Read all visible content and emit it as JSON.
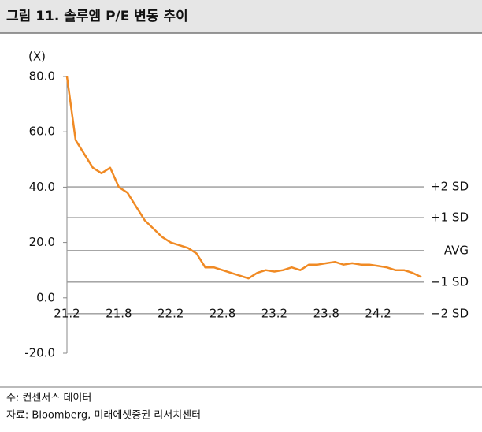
{
  "header": {
    "title": "그림 11. 솔루엠 P/E 변동 추이"
  },
  "chart_data": {
    "type": "line",
    "y_unit": "(X)",
    "categories": [
      "21.2",
      null,
      null,
      null,
      null,
      null,
      "21.8",
      null,
      null,
      null,
      null,
      null,
      "22.2",
      null,
      null,
      null,
      null,
      null,
      "22.8",
      null,
      null,
      null,
      null,
      null,
      "23.2",
      null,
      null,
      null,
      null,
      null,
      "23.8",
      null,
      null,
      null,
      null,
      null,
      "24.2",
      null,
      null,
      null,
      null,
      null
    ],
    "series": [
      {
        "name": "P/E",
        "color": "#f08a24",
        "values": [
          80,
          57,
          52,
          47,
          45,
          47,
          40,
          38,
          33,
          28,
          25,
          22,
          20,
          19,
          18,
          16,
          11,
          11,
          10,
          9,
          8,
          7,
          9,
          10,
          9.5,
          10,
          11,
          10,
          12,
          12,
          12.5,
          13,
          12,
          12.5,
          12,
          12,
          11.5,
          11,
          10,
          10,
          9,
          7.5
        ]
      }
    ],
    "reference_lines": [
      {
        "label": "+2 SD",
        "value": 40.1
      },
      {
        "label": "+1 SD",
        "value": 29.0
      },
      {
        "label": "AVG",
        "value": 17.1
      },
      {
        "label": "−1 SD",
        "value": 5.7
      },
      {
        "label": "−2 SD",
        "value": -5.7
      }
    ],
    "ylim": [
      -20,
      80
    ],
    "yticks": [
      {
        "value": -20,
        "label": "-20.0"
      },
      {
        "value": 0,
        "label": "0.0"
      },
      {
        "value": 20,
        "label": "20.0"
      },
      {
        "value": 40,
        "label": "40.0"
      },
      {
        "value": 60,
        "label": "60.0"
      },
      {
        "value": 80,
        "label": "80.0"
      }
    ]
  },
  "footer": {
    "notes": [
      "주: 컨센서스 데이터",
      "자료: Bloomberg, 미래에셋증권 리서치센터"
    ]
  }
}
